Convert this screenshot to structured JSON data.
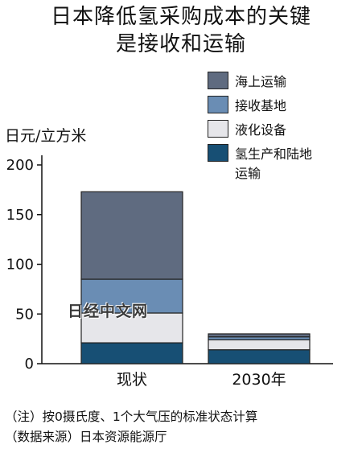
{
  "title_line1": "日本降低氢采购成本的关键",
  "title_line2": "是接收和运输",
  "unit_label": "日元/立方米",
  "watermark": "日经中文网",
  "notes": [
    "（注）按0摄氏度、1个大气压的标准状态计算",
    "（数据来源）日本资源能源厅"
  ],
  "colors": {
    "海上运输": "#5f6b80",
    "接收基地": "#6a8db4",
    "液化设备": "#e6e6ea",
    "氢生产和陆地运输": "#174f74"
  },
  "chart_data": {
    "type": "bar",
    "stacked": true,
    "categories": [
      "现状",
      "2030年"
    ],
    "series": [
      {
        "name": "氢生产和陆地运输",
        "values": [
          21,
          14
        ]
      },
      {
        "name": "液化设备",
        "values": [
          30,
          10
        ]
      },
      {
        "name": "接收基地",
        "values": [
          34,
          3
        ]
      },
      {
        "name": "海上运输",
        "values": [
          88,
          3
        ]
      }
    ],
    "legend": [
      "海上运输",
      "接收基地",
      "液化设备",
      "氢生产和陆地运输"
    ],
    "ylim": [
      0,
      200
    ],
    "yticks": [
      0,
      50,
      100,
      150,
      200
    ],
    "ylabel": "日元/立方米",
    "legend_position": "top-right",
    "grid": false
  }
}
